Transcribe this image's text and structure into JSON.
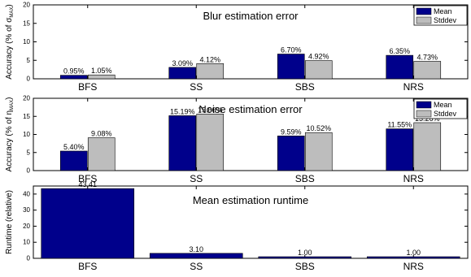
{
  "colors": {
    "mean": "#00008b",
    "stddev": "#bdbdbd"
  },
  "chart_data": [
    {
      "type": "bar",
      "title": "Blur estimation error",
      "ylabel": "Accuracy (% of σ_MAX)",
      "ylabel_main": "Accuracy (% of σ",
      "ylabel_sub": "MAX",
      "ylabel_close": ")",
      "categories": [
        "BFS",
        "SS",
        "SBS",
        "NRS"
      ],
      "ylim": [
        0,
        20
      ],
      "yticks": [
        0,
        5,
        10,
        15,
        20
      ],
      "legend_position": "top-right",
      "series": [
        {
          "name": "Mean",
          "color": "#00008b",
          "values": [
            0.95,
            3.09,
            6.7,
            6.35
          ],
          "labels": [
            "0.95%",
            "3.09%",
            "6.70%",
            "6.35%"
          ]
        },
        {
          "name": "Stddev",
          "color": "#bdbdbd",
          "values": [
            1.05,
            4.12,
            4.92,
            4.73
          ],
          "labels": [
            "1.05%",
            "4.12%",
            "4.92%",
            "4.73%"
          ]
        }
      ]
    },
    {
      "type": "bar",
      "title": "Noise estimation error",
      "ylabel": "Accuracy (% of η_MAX)",
      "ylabel_main": "Accuracy (% of η",
      "ylabel_sub": "MAX",
      "ylabel_close": ")",
      "categories": [
        "BFS",
        "SS",
        "SBS",
        "NRS"
      ],
      "ylim": [
        0,
        20
      ],
      "yticks": [
        0,
        5,
        10,
        15,
        20
      ],
      "legend_position": "top-right",
      "series": [
        {
          "name": "Mean",
          "color": "#00008b",
          "values": [
            5.4,
            15.19,
            9.59,
            11.55
          ],
          "labels": [
            "5.40%",
            "15.19%",
            "9.59%",
            "11.55%"
          ]
        },
        {
          "name": "Stddev",
          "color": "#bdbdbd",
          "values": [
            9.08,
            15.66,
            10.52,
            13.26
          ],
          "labels": [
            "9.08%",
            "15.66%",
            "10.52%",
            "13.26%"
          ]
        }
      ]
    },
    {
      "type": "bar",
      "title": "Mean estimation runtime",
      "ylabel": "Runtime (relative)",
      "categories": [
        "BFS",
        "SS",
        "SBS",
        "NRS"
      ],
      "ylim": [
        0,
        45
      ],
      "yticks": [
        0,
        10,
        20,
        30,
        40
      ],
      "series": [
        {
          "color": "#00008b",
          "values": [
            43.41,
            3.1,
            1.0,
            1.0
          ],
          "labels": [
            "43.41",
            "3.10",
            "1.00",
            "1.00"
          ]
        }
      ]
    }
  ]
}
